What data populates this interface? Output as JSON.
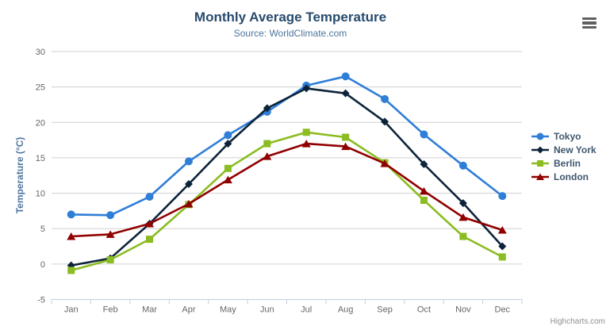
{
  "chart_data": {
    "type": "line",
    "title": "Monthly Average Temperature",
    "subtitle": "Source: WorldClimate.com",
    "categories": [
      "Jan",
      "Feb",
      "Mar",
      "Apr",
      "May",
      "Jun",
      "Jul",
      "Aug",
      "Sep",
      "Oct",
      "Nov",
      "Dec"
    ],
    "xlabel": "",
    "ylabel": "Temperature (°C)",
    "ylim": [
      -5,
      30
    ],
    "ytick_interval": 5,
    "grid": true,
    "legend_position": "right",
    "series": [
      {
        "name": "Tokyo",
        "color": "#2f7ed8",
        "marker": "circle",
        "values": [
          7.0,
          6.9,
          9.5,
          14.5,
          18.2,
          21.5,
          25.2,
          26.5,
          23.3,
          18.3,
          13.9,
          9.6
        ]
      },
      {
        "name": "New York",
        "color": "#0d233a",
        "marker": "diamond",
        "values": [
          -0.2,
          0.8,
          5.7,
          11.3,
          17.0,
          22.0,
          24.8,
          24.1,
          20.1,
          14.1,
          8.6,
          2.5
        ]
      },
      {
        "name": "Berlin",
        "color": "#8bbc21",
        "marker": "square",
        "values": [
          -0.9,
          0.6,
          3.5,
          8.4,
          13.5,
          17.0,
          18.6,
          17.9,
          14.3,
          9.0,
          3.9,
          1.0
        ]
      },
      {
        "name": "London",
        "color": "#910000",
        "marker": "triangle",
        "values": [
          3.9,
          4.2,
          5.7,
          8.5,
          11.9,
          15.2,
          17.0,
          16.6,
          14.2,
          10.3,
          6.6,
          4.8
        ]
      }
    ]
  },
  "credits": {
    "label": "Highcharts.com"
  },
  "icons": {
    "context_menu": "hamburger-icon"
  },
  "colors": {
    "title": "#274b6d",
    "subtitle": "#4d759e",
    "axis_label": "#666666",
    "legend_text": "#3e576f",
    "grid": "#d0d0d0",
    "axis_line": "#c0d0e0",
    "credits": "#909090",
    "menu_icon": "#606060"
  }
}
